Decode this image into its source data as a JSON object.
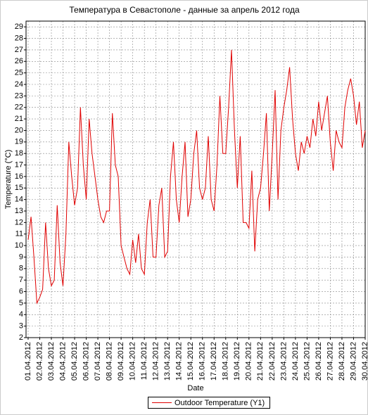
{
  "chart_data": {
    "type": "line",
    "title": "Температура в Севастополе - данные за апрель 2012 года",
    "xlabel": "Date",
    "ylabel": "Temperature (°C)",
    "x": [
      1,
      1.25,
      1.5,
      1.75,
      2,
      2.25,
      2.5,
      2.75,
      3,
      3.25,
      3.5,
      3.75,
      4,
      4.25,
      4.5,
      4.75,
      5,
      5.25,
      5.5,
      5.75,
      6,
      6.25,
      6.5,
      6.75,
      7,
      7.25,
      7.5,
      7.75,
      8,
      8.25,
      8.5,
      8.75,
      9,
      9.25,
      9.5,
      9.75,
      10,
      10.25,
      10.5,
      10.75,
      11,
      11.25,
      11.5,
      11.75,
      12,
      12.25,
      12.5,
      12.75,
      13,
      13.25,
      13.5,
      13.75,
      14,
      14.25,
      14.5,
      14.75,
      15,
      15.25,
      15.5,
      15.75,
      16,
      16.25,
      16.5,
      16.75,
      17,
      17.25,
      17.5,
      17.75,
      18,
      18.25,
      18.5,
      18.75,
      19,
      19.25,
      19.5,
      19.75,
      20,
      20.25,
      20.5,
      20.75,
      21,
      21.25,
      21.5,
      21.75,
      22,
      22.25,
      22.5,
      22.75,
      23,
      23.25,
      23.5,
      23.75,
      24,
      24.25,
      24.5,
      24.75,
      25,
      25.25,
      25.5,
      25.75,
      26,
      26.25,
      26.5,
      26.75,
      27,
      27.25,
      27.5,
      27.75,
      28,
      28.25,
      28.5,
      28.75,
      29,
      29.25,
      29.5,
      29.75,
      30
    ],
    "series": [
      {
        "name": "Outdoor Temperature (Y1)",
        "color": "#e00000",
        "values": [
          10.5,
          12.5,
          9,
          5,
          5.5,
          6.2,
          12,
          8,
          6.5,
          7,
          13.5,
          8.5,
          6.5,
          11,
          19,
          16,
          13.5,
          15,
          22,
          17,
          14,
          21,
          18,
          16,
          14,
          12.5,
          12,
          13,
          13,
          21.5,
          17,
          16,
          10,
          9,
          8,
          7.5,
          10.5,
          8.5,
          11,
          8,
          7.5,
          12,
          14,
          9,
          9,
          13.5,
          15,
          9,
          9.5,
          16,
          19,
          14,
          12,
          16,
          19,
          12.5,
          14,
          18,
          20,
          15,
          14,
          15,
          19.5,
          14,
          13,
          17,
          23,
          18,
          18,
          22,
          27,
          20,
          15,
          19.5,
          12,
          12,
          11.5,
          16.5,
          9.5,
          14,
          15,
          18,
          21.5,
          13,
          18,
          23.5,
          14,
          20,
          22,
          23.5,
          25.5,
          21,
          18,
          16.5,
          19,
          18,
          19.5,
          18.5,
          21,
          19.5,
          22.5,
          20,
          21.5,
          23,
          19,
          16.5,
          20,
          19,
          18.5,
          22,
          23.5,
          24.5,
          23,
          20.5,
          22.5,
          18.5,
          20
        ]
      }
    ],
    "xlim": [
      0.82,
      30
    ],
    "xticks": [
      {
        "value": 1,
        "label": "01.04.2012"
      },
      {
        "value": 2,
        "label": "02.04.2012"
      },
      {
        "value": 3,
        "label": "03.04.2012"
      },
      {
        "value": 4,
        "label": "04.04.2012"
      },
      {
        "value": 5,
        "label": "05.04.2012"
      },
      {
        "value": 6,
        "label": "06.04.2012"
      },
      {
        "value": 7,
        "label": "07.04.2012"
      },
      {
        "value": 8,
        "label": "08.04.2012"
      },
      {
        "value": 9,
        "label": "09.04.2012"
      },
      {
        "value": 10,
        "label": "10.04.2012"
      },
      {
        "value": 11,
        "label": "11.04.2012"
      },
      {
        "value": 12,
        "label": "12.04.2012"
      },
      {
        "value": 13,
        "label": "13.04.2012"
      },
      {
        "value": 14,
        "label": "14.04.2012"
      },
      {
        "value": 15,
        "label": "15.04.2012"
      },
      {
        "value": 16,
        "label": "16.04.2012"
      },
      {
        "value": 17,
        "label": "17.04.2012"
      },
      {
        "value": 18,
        "label": "18.04.2012"
      },
      {
        "value": 19,
        "label": "19.04.2012"
      },
      {
        "value": 20,
        "label": "20.04.2012"
      },
      {
        "value": 21,
        "label": "21.04.2012"
      },
      {
        "value": 22,
        "label": "22.04.2012"
      },
      {
        "value": 23,
        "label": "23.04.2012"
      },
      {
        "value": 24,
        "label": "24.04.2012"
      },
      {
        "value": 25,
        "label": "25.04.2012"
      },
      {
        "value": 26,
        "label": "26.04.2012"
      },
      {
        "value": 27,
        "label": "27.04.2012"
      },
      {
        "value": 28,
        "label": "28.04.2012"
      },
      {
        "value": 29,
        "label": "29.04.2012"
      },
      {
        "value": 30,
        "label": "30.04.2012"
      }
    ],
    "ylim": [
      2,
      29.5
    ],
    "yticks": [
      2,
      3,
      4,
      5,
      6,
      7,
      8,
      9,
      10,
      11,
      12,
      13,
      14,
      15,
      16,
      17,
      18,
      19,
      20,
      21,
      22,
      23,
      24,
      25,
      26,
      27,
      28,
      29
    ],
    "grid": true,
    "legend": "bottom"
  }
}
